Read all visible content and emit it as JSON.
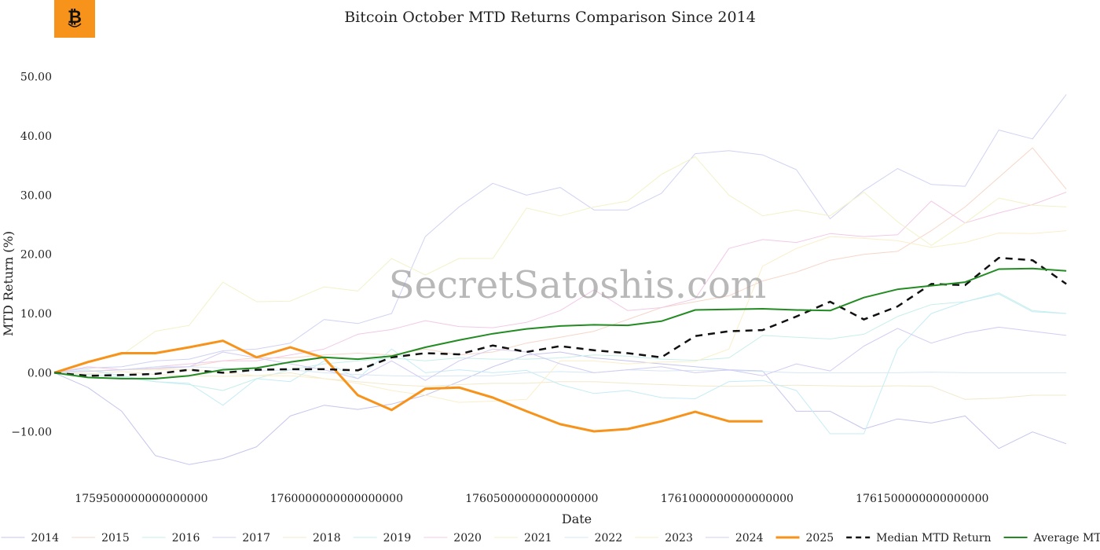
{
  "logo": {
    "icon": "bitcoin-logo-icon",
    "color": "#f7931a"
  },
  "watermark": "SecretSatoshis.com",
  "chart_data": {
    "type": "line",
    "title": "Bitcoin October MTD Returns Comparison Since 2014",
    "xlabel": "Date",
    "ylabel": "MTD Return (%)",
    "x_ticks": [
      "1759500000000000000",
      "1760000000000000000",
      "1760500000000000000",
      "1761000000000000000",
      "1761500000000000000"
    ],
    "y_ticks": [
      "50.00",
      "40.00",
      "30.00",
      "20.00",
      "10.00",
      "0.00",
      "−10.00"
    ],
    "y_tick_values": [
      50,
      40,
      30,
      20,
      10,
      0,
      -10
    ],
    "ylim": [
      -18,
      55
    ],
    "xlim": [
      1759276800000000000,
      1761955200000000000
    ],
    "grid": false,
    "legend_position": "bottom",
    "x": [
      1759276800000000000,
      1759363200000000000,
      1759449600000000000,
      1759536000000000000,
      1759622400000000000,
      1759708800000000000,
      1759795200000000000,
      1759881600000000000,
      1759968000000000000,
      1760054400000000000,
      1760140800000000000,
      1760227200000000000,
      1760313600000000000,
      1760400000000000000,
      1760486400000000000,
      1760572800000000000,
      1760659200000000000,
      1760745600000000000,
      1760832000000000000,
      1760918400000000000,
      1761004800000000000,
      1761091200000000000,
      1761177600000000000,
      1761264000000000000,
      1761350400000000000,
      1761436800000000000,
      1761523200000000000,
      1761609600000000000,
      1761696000000000000,
      1761782400000000000,
      1761868800000000000
    ],
    "series": [
      {
        "name": "2014",
        "color": "#c5c5ee",
        "width": 1,
        "values": [
          0,
          -2.5,
          -6.5,
          -14,
          -15.5,
          -14.5,
          -12.5,
          -7.3,
          -5.5,
          -6.2,
          -5.3,
          -3.8,
          -1.5,
          1,
          3,
          3.5,
          2.5,
          2,
          1.5,
          1,
          0.5,
          0.3,
          -6.5,
          -6.5,
          -9.5,
          -7.8,
          -8.5,
          -7.3,
          -12.8,
          -10,
          -12
        ]
      },
      {
        "name": "2015",
        "color": "#f6d6c8",
        "width": 1,
        "values": [
          0,
          0.3,
          0.5,
          0.6,
          1,
          2,
          2.5,
          2.5,
          3,
          3.3,
          3,
          4,
          3,
          3.5,
          5,
          6,
          7,
          9,
          11,
          12,
          13,
          15.5,
          17,
          19,
          20,
          20.5,
          24,
          28,
          33,
          38,
          31
        ]
      },
      {
        "name": "2016",
        "color": "#c6efea",
        "width": 1,
        "values": [
          0,
          -0.3,
          -0.8,
          -1.5,
          -2,
          -3,
          -1,
          0.5,
          1.5,
          2,
          2.5,
          2,
          2.5,
          2.3,
          2.3,
          2.5,
          3,
          2.8,
          2.3,
          2.1,
          2.5,
          6.3,
          6,
          5.7,
          6.5,
          9.5,
          11.5,
          12,
          13.5,
          10.5,
          10
        ]
      },
      {
        "name": "2017",
        "color": "#cfd2f3",
        "width": 1,
        "values": [
          0,
          0.8,
          1,
          2,
          2.3,
          3.7,
          4,
          5,
          9,
          8.3,
          10,
          23,
          28,
          32,
          30,
          31.3,
          27.5,
          27.5,
          30.3,
          37,
          37.5,
          36.8,
          34.3,
          26,
          30.8,
          34.5,
          31.8,
          31.5,
          41,
          39.5,
          47
        ]
      },
      {
        "name": "2018",
        "color": "#f2e8cc",
        "width": 1,
        "values": [
          0,
          -0.2,
          0.2,
          -0.3,
          -0.5,
          -0.6,
          -0.5,
          0,
          -1,
          -1.5,
          -2,
          -2.3,
          -2,
          -1.8,
          -1.8,
          -1.5,
          -1.5,
          -1.8,
          -2,
          -2.2,
          -2.3,
          -2.2,
          -2.1,
          -2.2,
          -2.3,
          -2.2,
          -2.3,
          -4.5,
          -4.3,
          -3.8,
          -3.8
        ]
      },
      {
        "name": "2019",
        "color": "#c4ecf5",
        "width": 1,
        "values": [
          0,
          0.5,
          -0.5,
          -1.5,
          -1.8,
          -5.5,
          -1,
          -1.5,
          2,
          -1,
          4,
          0,
          0.5,
          0,
          0.4,
          -2,
          -3.5,
          -3,
          -4.2,
          -4.4,
          -1.5,
          -1.3,
          -3,
          -10.3,
          -10.3,
          4,
          10,
          12,
          13.3,
          10.3,
          10
        ]
      },
      {
        "name": "2020",
        "color": "#f2c9e6",
        "width": 1,
        "values": [
          0,
          1,
          0.5,
          1,
          1.5,
          2,
          2,
          3,
          4,
          6.5,
          7.3,
          8.8,
          7.8,
          7.6,
          8.5,
          10.5,
          14,
          10.5,
          11,
          12.5,
          21,
          22.5,
          22,
          23.5,
          23,
          23.3,
          29,
          25.3,
          27,
          28.4,
          30.5
        ]
      },
      {
        "name": "2021",
        "color": "#f2f2c8",
        "width": 1,
        "values": [
          0,
          2,
          3,
          7,
          8,
          15.3,
          12,
          12.1,
          14.5,
          13.8,
          19.3,
          16.5,
          19.3,
          19.3,
          27.8,
          26.5,
          28,
          29,
          33.5,
          36.5,
          30,
          26.5,
          27.5,
          26.5,
          30.5,
          25.5,
          21.5,
          25.3,
          29.5,
          28.3,
          28
        ]
      },
      {
        "name": "2022",
        "color": "#d6e7f6",
        "width": 1,
        "values": [
          0,
          0.3,
          0.5,
          1,
          1,
          0.8,
          0.3,
          0.5,
          0,
          -0.3,
          -0.5,
          -0.6,
          -0.5,
          -0.5,
          0,
          0.2,
          0,
          0.5,
          0.3,
          0.4,
          0.4,
          0.2,
          0,
          0,
          0,
          0,
          0.1,
          0,
          0,
          0,
          0
        ]
      },
      {
        "name": "2023",
        "color": "#faeec9",
        "width": 1,
        "values": [
          0,
          0.3,
          0.5,
          0.5,
          0.5,
          0,
          -0.5,
          -0.5,
          -1,
          -1.8,
          -3,
          -3.8,
          -5,
          -4.8,
          -4.5,
          2,
          2,
          1.5,
          1.8,
          1.9,
          4,
          18,
          21,
          23,
          22.7,
          22.3,
          21.2,
          22,
          23.6,
          23.5,
          24
        ]
      },
      {
        "name": "2024",
        "color": "#d2ccf3",
        "width": 1,
        "values": [
          0,
          0.2,
          0.5,
          0.8,
          1,
          3.5,
          2.5,
          1.5,
          0.5,
          -1,
          2,
          -1.3,
          2,
          4,
          3.5,
          1.5,
          0,
          0.5,
          1,
          0,
          0.5,
          -0.5,
          1.5,
          0.3,
          4.5,
          7.5,
          5,
          6.7,
          7.7,
          7,
          6.3
        ]
      },
      {
        "name": "2025",
        "color": "#f7931a",
        "width": 3,
        "values": [
          0,
          1.8,
          3.3,
          3.3,
          4.3,
          5.4,
          2.6,
          4.3,
          2.5,
          -3.8,
          -6.3,
          -2.7,
          -2.5,
          -4.2,
          -6.5,
          -8.7,
          -9.9,
          -9.5,
          -8.2,
          -6.6,
          -8.2,
          -8.2,
          null,
          null,
          null,
          null,
          null,
          null,
          null,
          null,
          null
        ]
      },
      {
        "name": "Median MTD Return",
        "color": "#111111",
        "width": 2.5,
        "dash": "9,7",
        "values": [
          0,
          -0.5,
          -0.4,
          -0.2,
          0.5,
          0,
          0.5,
          0.6,
          0.6,
          0.4,
          2.6,
          3.3,
          3.1,
          4.6,
          3.5,
          4.5,
          3.8,
          3.3,
          2.6,
          6.2,
          7,
          7.2,
          9.5,
          12,
          9,
          11.2,
          15,
          14.8,
          19.4,
          19,
          15
        ]
      },
      {
        "name": "Average MTD Return",
        "color": "#228b22",
        "width": 2,
        "values": [
          0,
          -0.8,
          -1,
          -1,
          -0.5,
          0.5,
          0.8,
          1.8,
          2.6,
          2.3,
          2.8,
          4.3,
          5.5,
          6.6,
          7.4,
          7.9,
          8.1,
          8,
          8.7,
          10.6,
          10.7,
          10.8,
          10.6,
          10.5,
          12.7,
          14.1,
          14.7,
          15.3,
          17.5,
          17.6,
          17.2
        ]
      }
    ]
  }
}
